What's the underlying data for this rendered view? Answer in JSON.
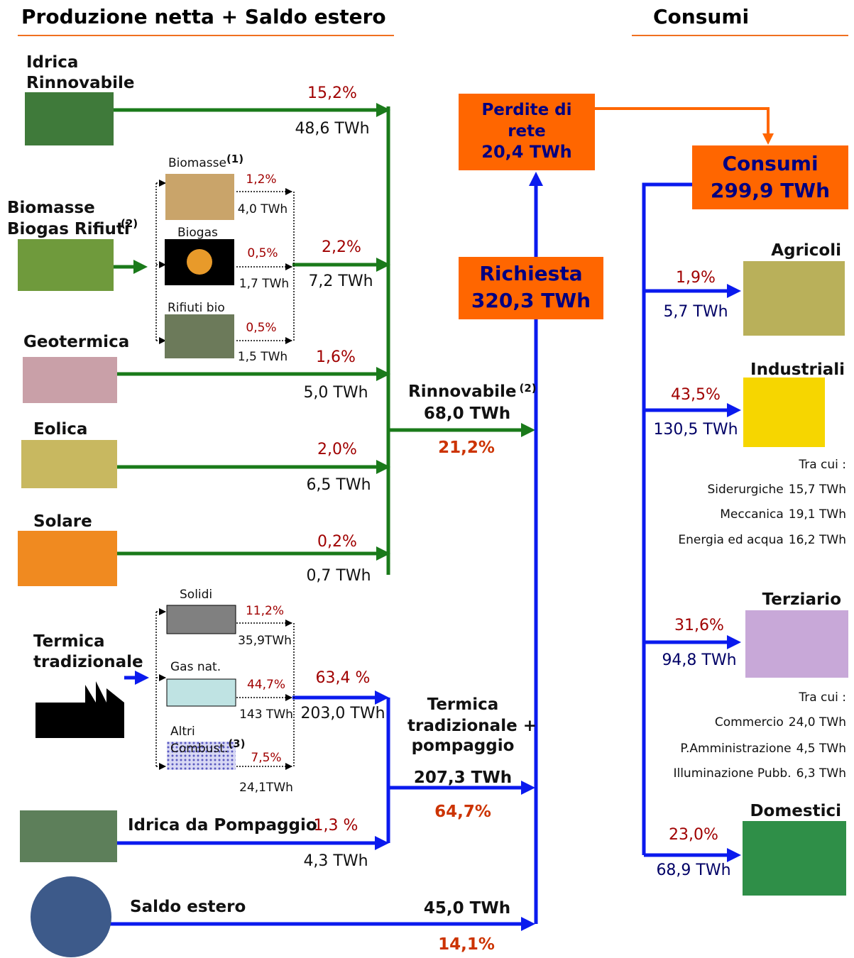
{
  "header": {
    "left_title": "Produzione netta + Saldo estero",
    "right_title": "Consumi"
  },
  "sources": [
    {
      "label": [
        "Idrica",
        "Rinnovabile"
      ],
      "percent": "15,2%",
      "value": "48,6 TWh"
    },
    {
      "label": [
        "Biomasse",
        "Biogas Rifiuti"
      ],
      "note": "(2)",
      "percent": "2,2%",
      "value": "7,2 TWh",
      "components": [
        {
          "label": "Biomasse",
          "note": "(1)",
          "percent": "1,2%",
          "value": "4,0 TWh"
        },
        {
          "label": "Biogas",
          "percent": "0,5%",
          "value": "1,7 TWh"
        },
        {
          "label": "Rifiuti bio",
          "percent": "0,5%",
          "value": "1,5 TWh"
        }
      ]
    },
    {
      "label": [
        "Geotermica"
      ],
      "percent": "1,6%",
      "value": "5,0 TWh"
    },
    {
      "label": [
        "Eolica"
      ],
      "percent": "2,0%",
      "value": "6,5 TWh"
    },
    {
      "label": [
        "Solare"
      ],
      "percent": "0,2%",
      "value": "0,7 TWh"
    },
    {
      "label": [
        "Termica",
        "tradizionale"
      ],
      "percent": "63,4 %",
      "value": "203,0 TWh",
      "components": [
        {
          "label": [
            "Solidi"
          ],
          "percent": "11,2%",
          "value": "35,9TWh"
        },
        {
          "label": [
            "Gas nat."
          ],
          "percent": "44,7%",
          "value": "143 TWh"
        },
        {
          "label": [
            "Altri",
            "Combust."
          ],
          "note": "(3)",
          "percent": "7,5%",
          "value": "24,1TWh"
        }
      ]
    },
    {
      "label": [
        "Idrica da Pompaggio"
      ],
      "percent": "1,3 %",
      "value": "4,3 TWh"
    },
    {
      "label": [
        "Saldo estero"
      ],
      "percent": "14,1%",
      "value": "45,0 TWh"
    }
  ],
  "rinnovabile": {
    "label": "Rinnovabile",
    "note": "(2)",
    "value": "68,0 TWh",
    "percent": "21,2%"
  },
  "termica_pompaggio": {
    "label": [
      "Termica",
      "tradizionale +",
      "pompaggio"
    ],
    "value": "207,3 TWh",
    "percent": "64,7%"
  },
  "richiesta": {
    "label": "Richiesta",
    "value": "320,3 TWh"
  },
  "perdite": {
    "label": [
      "Perdite di",
      "rete"
    ],
    "value": "20,4 TWh"
  },
  "consumi": {
    "label": "Consumi",
    "value": "299,9 TWh"
  },
  "sectors": [
    {
      "label": "Agricoli",
      "percent": "1,9%",
      "value": "5,7 TWh"
    },
    {
      "label": "Industriali",
      "percent": "43,5%",
      "value": "130,5 TWh",
      "breakdown_title": "Tra cui :",
      "breakdown": [
        {
          "label": "Siderurgiche",
          "value": "15,7 TWh"
        },
        {
          "label": "Meccanica",
          "value": "19,1 TWh"
        },
        {
          "label": "Energia ed acqua",
          "value": "16,2 TWh"
        }
      ]
    },
    {
      "label": "Terziario",
      "percent": "31,6%",
      "value": "94,8 TWh",
      "breakdown_title": "Tra cui :",
      "breakdown": [
        {
          "label": "Commercio",
          "value": "24,0 TWh"
        },
        {
          "label": "P.Amministrazione",
          "value": "4,5 TWh"
        },
        {
          "label": "Illuminazione Pubb.",
          "value": "6,3 TWh"
        }
      ]
    },
    {
      "label": "Domestici",
      "percent": "23,0%",
      "value": "68,9 TWh"
    }
  ]
}
